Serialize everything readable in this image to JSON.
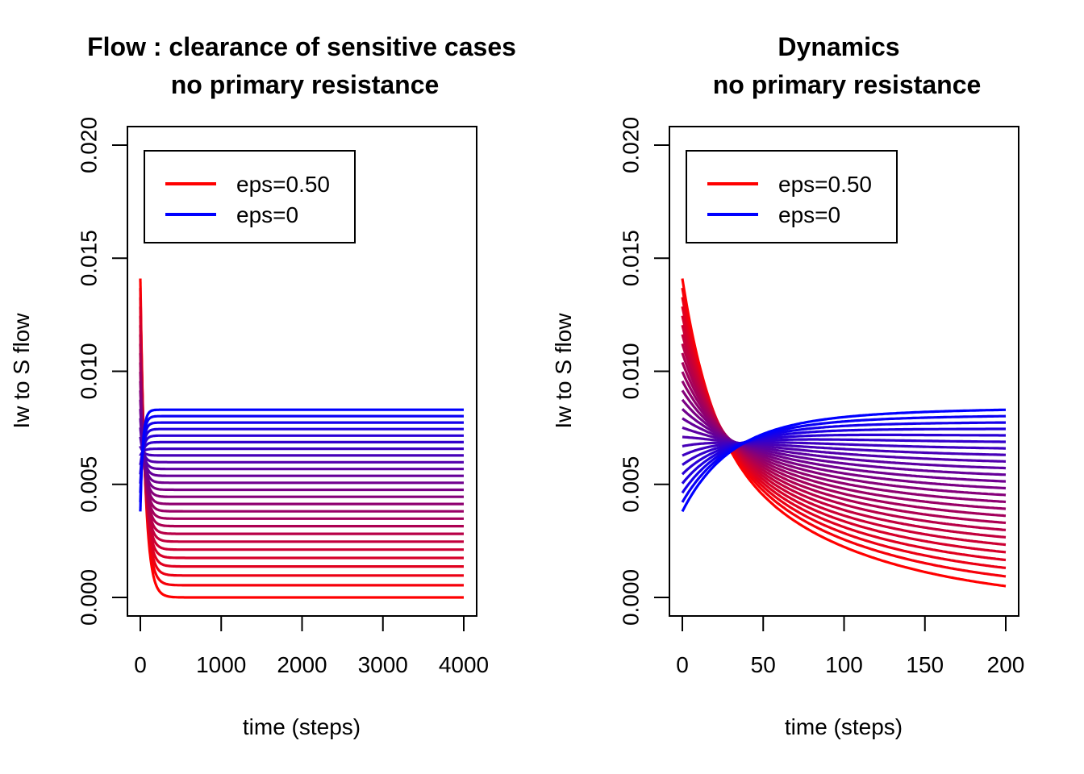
{
  "colors": {
    "start": "#ff0000",
    "end": "#0000ff",
    "axis": "#000000",
    "background": "#ffffff"
  },
  "chart_data": [
    {
      "type": "line",
      "title_line1": "Flow : clearance of sensitive cases",
      "title_line2": "no primary resistance",
      "xlabel": "time (steps)",
      "ylabel": "Iw to S flow",
      "xlim": [
        0,
        4000
      ],
      "ylim": [
        0,
        0.02
      ],
      "xticks": [
        "0",
        "1000",
        "2000",
        "3000",
        "4000"
      ],
      "xtick_values": [
        0,
        1000,
        2000,
        3000,
        4000
      ],
      "yticks": [
        "0.000",
        "0.005",
        "0.010",
        "0.015",
        "0.020"
      ],
      "ytick_values": [
        0,
        0.005,
        0.01,
        0.015,
        0.02
      ],
      "legend": [
        {
          "label": "eps=0.50",
          "color": "#ff0000"
        },
        {
          "label": "eps=0"
        }
      ],
      "legend_position": "top-left",
      "grid": false,
      "series_count": 26,
      "initial_values": [
        0.0141,
        0.0038
      ],
      "final_values": [
        0.0,
        0.0083
      ],
      "decay_time_scale": [
        60,
        30
      ]
    },
    {
      "type": "line",
      "title_line1": "Dynamics",
      "title_line2": "no primary resistance",
      "xlabel": "time (steps)",
      "ylabel": "Iw to S flow",
      "xlim": [
        0,
        200
      ],
      "ylim": [
        0,
        0.02
      ],
      "xticks": [
        "0",
        "50",
        "100",
        "150",
        "200"
      ],
      "xtick_values": [
        0,
        50,
        100,
        150,
        200
      ],
      "yticks": [
        "0.000",
        "0.005",
        "0.010",
        "0.015",
        "0.020"
      ],
      "ytick_values": [
        0,
        0.005,
        0.01,
        0.015,
        0.02
      ],
      "legend": [
        {
          "label": "eps=0.50",
          "color": "#ff0000"
        },
        {
          "label": "eps=0",
          "color": "#0000ff"
        }
      ],
      "legend_position": "top-left",
      "grid": false,
      "series_count": 26,
      "initial_values": [
        0.0141,
        0.0038
      ],
      "final_values_at_200": [
        0.0005,
        0.0083
      ]
    }
  ]
}
